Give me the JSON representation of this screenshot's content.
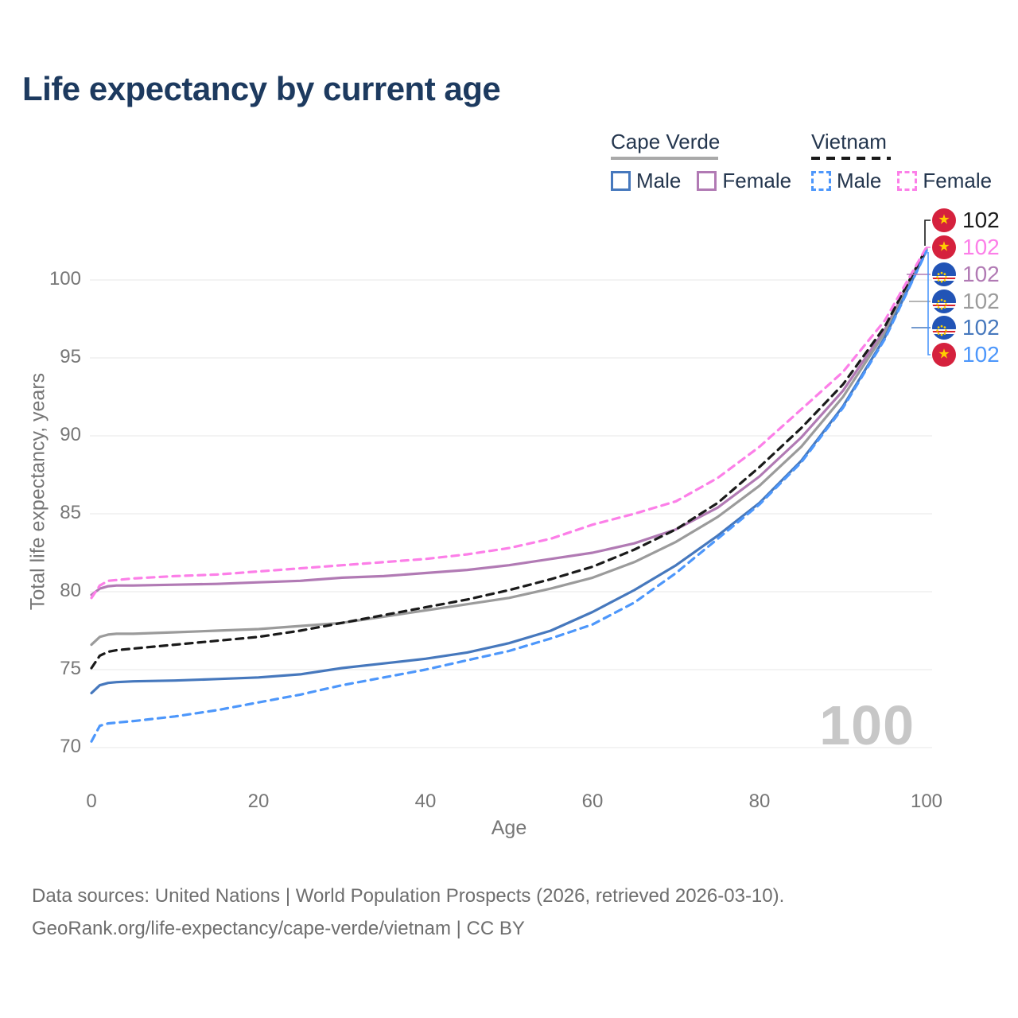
{
  "title": "Life expectancy by current age",
  "legend": {
    "groups": [
      {
        "label": "Cape Verde",
        "line_style": "solid",
        "underline_color": "#a9a9a9",
        "items": [
          {
            "label": "Male",
            "color": "#4678bd",
            "dash": false
          },
          {
            "label": "Female",
            "color": "#b17ab4",
            "dash": false
          }
        ]
      },
      {
        "label": "Vietnam",
        "line_style": "dashed",
        "underline_color": "#1a1a1a",
        "items": [
          {
            "label": "Male",
            "color": "#4d97fb",
            "dash": true
          },
          {
            "label": "Female",
            "color": "#fc7fe8",
            "dash": true
          }
        ]
      }
    ]
  },
  "chart_data": {
    "type": "line",
    "title": "Life expectancy by current age",
    "xlabel": "Age",
    "ylabel": "Total life expectancy, years",
    "x_ticks": [
      0,
      20,
      40,
      60,
      80,
      100
    ],
    "y_ticks": [
      70,
      75,
      80,
      85,
      90,
      95,
      100
    ],
    "xlim": [
      0,
      100
    ],
    "ylim": [
      70,
      103
    ],
    "grid": "horizontal",
    "legend_position": "top-right",
    "watermark": "100",
    "x": [
      0,
      1,
      2,
      3,
      5,
      10,
      15,
      20,
      25,
      30,
      35,
      40,
      45,
      50,
      55,
      60,
      65,
      70,
      75,
      80,
      85,
      90,
      95,
      100
    ],
    "series": [
      {
        "name": "Cape Verde Female",
        "country": "Cape Verde",
        "sex": "Female",
        "style": "solid",
        "color": "#b17ab4",
        "values": [
          79.8,
          80.2,
          80.35,
          80.4,
          80.4,
          80.45,
          80.5,
          80.6,
          80.7,
          80.9,
          81.0,
          81.2,
          81.4,
          81.7,
          82.1,
          82.5,
          83.1,
          84.0,
          85.4,
          87.4,
          89.9,
          92.9,
          96.8,
          102.0
        ]
      },
      {
        "name": "Cape Verde Both sexes",
        "country": "Cape Verde",
        "sex": "Both",
        "style": "solid",
        "color": "#9b9b9b",
        "values": [
          76.6,
          77.1,
          77.25,
          77.3,
          77.3,
          77.4,
          77.5,
          77.6,
          77.8,
          78.0,
          78.4,
          78.8,
          79.2,
          79.6,
          80.2,
          80.9,
          81.9,
          83.2,
          84.8,
          86.8,
          89.3,
          92.5,
          96.6,
          101.95
        ]
      },
      {
        "name": "Cape Verde Male",
        "country": "Cape Verde",
        "sex": "Male",
        "style": "solid",
        "color": "#4678bd",
        "values": [
          73.5,
          74.0,
          74.15,
          74.2,
          74.25,
          74.3,
          74.4,
          74.5,
          74.7,
          75.1,
          75.4,
          75.7,
          76.1,
          76.7,
          77.5,
          78.7,
          80.1,
          81.7,
          83.6,
          85.7,
          88.4,
          91.9,
          96.3,
          101.9
        ]
      },
      {
        "name": "Vietnam Both sexes",
        "country": "Vietnam",
        "sex": "Both",
        "style": "dashed",
        "color": "#1a1a1a",
        "values": [
          75.1,
          75.9,
          76.15,
          76.25,
          76.35,
          76.6,
          76.85,
          77.1,
          77.5,
          78.0,
          78.5,
          79.0,
          79.5,
          80.1,
          80.8,
          81.6,
          82.7,
          84.0,
          85.7,
          88.0,
          90.5,
          93.3,
          97.0,
          102.05
        ]
      },
      {
        "name": "Vietnam Female",
        "country": "Vietnam",
        "sex": "Female",
        "style": "dashed",
        "color": "#fc7fe8",
        "values": [
          79.6,
          80.4,
          80.7,
          80.75,
          80.85,
          81.0,
          81.1,
          81.3,
          81.5,
          81.7,
          81.9,
          82.1,
          82.4,
          82.8,
          83.4,
          84.3,
          85.0,
          85.8,
          87.3,
          89.3,
          91.7,
          94.1,
          97.4,
          102.1
        ]
      },
      {
        "name": "Vietnam Male",
        "country": "Vietnam",
        "sex": "Male",
        "style": "dashed",
        "color": "#4d97fb",
        "values": [
          70.4,
          71.4,
          71.55,
          71.6,
          71.7,
          72.0,
          72.4,
          72.9,
          73.4,
          74.0,
          74.5,
          75.0,
          75.6,
          76.2,
          77.0,
          77.9,
          79.3,
          81.2,
          83.4,
          85.6,
          88.3,
          91.8,
          96.2,
          101.85
        ]
      }
    ],
    "end_labels": [
      {
        "flag": "vn",
        "value": "102",
        "color": "#1a1a1a"
      },
      {
        "flag": "vn",
        "value": "102",
        "color": "#fc7fe8"
      },
      {
        "flag": "cv",
        "value": "102",
        "color": "#b17ab4"
      },
      {
        "flag": "cv",
        "value": "102",
        "color": "#9b9b9b"
      },
      {
        "flag": "cv",
        "value": "102",
        "color": "#4678bd"
      },
      {
        "flag": "vn",
        "value": "102",
        "color": "#4d97fb"
      }
    ]
  },
  "footer": {
    "line1": "Data sources: United Nations | World Population Prospects (2026, retrieved 2026-03-10).",
    "line2": "GeoRank.org/life-expectancy/cape-verde/vietnam | CC BY"
  }
}
